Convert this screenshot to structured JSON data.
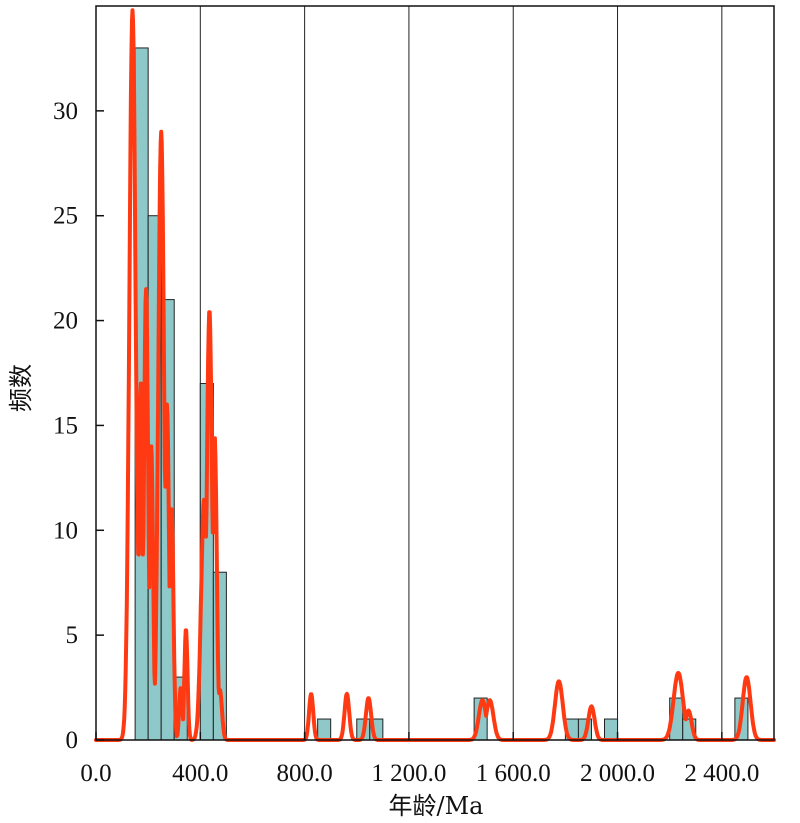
{
  "chart_data": {
    "type": "bar",
    "title": "",
    "xlabel": "年龄/Ma",
    "ylabel": "频数",
    "xlim": [
      0,
      2600
    ],
    "ylim": [
      0,
      35
    ],
    "x_ticks": [
      0,
      400,
      800,
      1200,
      1600,
      2000,
      2400
    ],
    "x_tick_labels": [
      "0.0",
      "400.0",
      "800.0",
      "1 200.0",
      "1 600.0",
      "2 000.0",
      "2 400.0"
    ],
    "y_ticks": [
      0,
      5,
      10,
      15,
      20,
      25,
      30
    ],
    "y_tick_labels": [
      "0",
      "5",
      "10",
      "15",
      "20",
      "25",
      "30"
    ],
    "grid": "vertical lines at each x tick",
    "colors": {
      "histogram_fill": "#8ec8c8",
      "histogram_edge": "#222222",
      "density_curve": "#ff3a12"
    },
    "histogram": {
      "bin_width": 50,
      "bins": [
        {
          "start": 150,
          "count": 33
        },
        {
          "start": 200,
          "count": 25
        },
        {
          "start": 250,
          "count": 21
        },
        {
          "start": 300,
          "count": 3
        },
        {
          "start": 400,
          "count": 17
        },
        {
          "start": 450,
          "count": 8
        },
        {
          "start": 850,
          "count": 1
        },
        {
          "start": 1000,
          "count": 1
        },
        {
          "start": 1050,
          "count": 1
        },
        {
          "start": 1450,
          "count": 2
        },
        {
          "start": 1800,
          "count": 1
        },
        {
          "start": 1850,
          "count": 1
        },
        {
          "start": 1950,
          "count": 1
        },
        {
          "start": 2200,
          "count": 2
        },
        {
          "start": 2250,
          "count": 1
        },
        {
          "start": 2450,
          "count": 2
        }
      ]
    },
    "density_curve": {
      "peaks": [
        {
          "x": 140,
          "y": 34.8,
          "w": 12
        },
        {
          "x": 155,
          "y": 13,
          "w": 8
        },
        {
          "x": 172,
          "y": 17,
          "w": 7
        },
        {
          "x": 192,
          "y": 21.5,
          "w": 8
        },
        {
          "x": 212,
          "y": 14,
          "w": 7
        },
        {
          "x": 250,
          "y": 29,
          "w": 11
        },
        {
          "x": 272,
          "y": 16,
          "w": 8
        },
        {
          "x": 290,
          "y": 11,
          "w": 7
        },
        {
          "x": 325,
          "y": 2.5,
          "w": 6
        },
        {
          "x": 345,
          "y": 5.3,
          "w": 6
        },
        {
          "x": 415,
          "y": 11.5,
          "w": 12
        },
        {
          "x": 435,
          "y": 20.5,
          "w": 10
        },
        {
          "x": 455,
          "y": 14.5,
          "w": 8
        },
        {
          "x": 475,
          "y": 2.4,
          "w": 8
        },
        {
          "x": 825,
          "y": 2.2,
          "w": 8
        },
        {
          "x": 962,
          "y": 2.2,
          "w": 9
        },
        {
          "x": 1045,
          "y": 2.0,
          "w": 10
        },
        {
          "x": 1482,
          "y": 1.9,
          "w": 14
        },
        {
          "x": 1510,
          "y": 1.9,
          "w": 14
        },
        {
          "x": 1775,
          "y": 2.8,
          "w": 15
        },
        {
          "x": 1900,
          "y": 1.6,
          "w": 12
        },
        {
          "x": 2233,
          "y": 3.2,
          "w": 18
        },
        {
          "x": 2272,
          "y": 1.4,
          "w": 12
        },
        {
          "x": 2495,
          "y": 3.0,
          "w": 15
        }
      ]
    }
  }
}
